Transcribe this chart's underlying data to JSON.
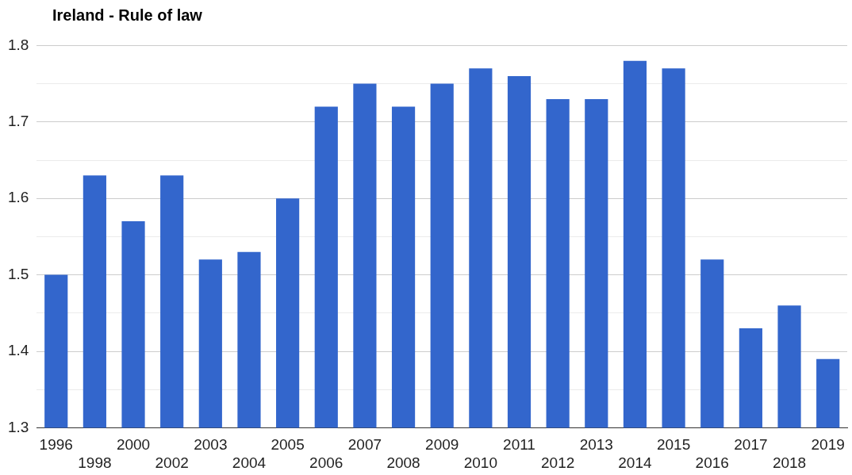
{
  "chart_data": {
    "type": "bar",
    "title": "Ireland - Rule of law",
    "categories": [
      "1996",
      "1998",
      "2000",
      "2002",
      "2003",
      "2004",
      "2005",
      "2006",
      "2007",
      "2008",
      "2009",
      "2010",
      "2011",
      "2012",
      "2013",
      "2014",
      "2015",
      "2016",
      "2017",
      "2018",
      "2019"
    ],
    "values": [
      1.5,
      1.63,
      1.57,
      1.63,
      1.52,
      1.53,
      1.6,
      1.72,
      1.75,
      1.72,
      1.75,
      1.77,
      1.76,
      1.73,
      1.73,
      1.78,
      1.77,
      1.52,
      1.43,
      1.46,
      1.39
    ],
    "color": "#3366cc",
    "ylim": [
      1.3,
      1.8
    ],
    "yticks": [
      {
        "value": 1.3,
        "label": "1.3"
      },
      {
        "value": 1.35,
        "label": null
      },
      {
        "value": 1.4,
        "label": "1.4"
      },
      {
        "value": 1.45,
        "label": null
      },
      {
        "value": 1.5,
        "label": "1.5"
      },
      {
        "value": 1.55,
        "label": null
      },
      {
        "value": 1.6,
        "label": "1.6"
      },
      {
        "value": 1.65,
        "label": null
      },
      {
        "value": 1.7,
        "label": "1.7"
      },
      {
        "value": 1.75,
        "label": null
      },
      {
        "value": 1.8,
        "label": "1.8"
      }
    ],
    "grid": true,
    "legend": false
  }
}
